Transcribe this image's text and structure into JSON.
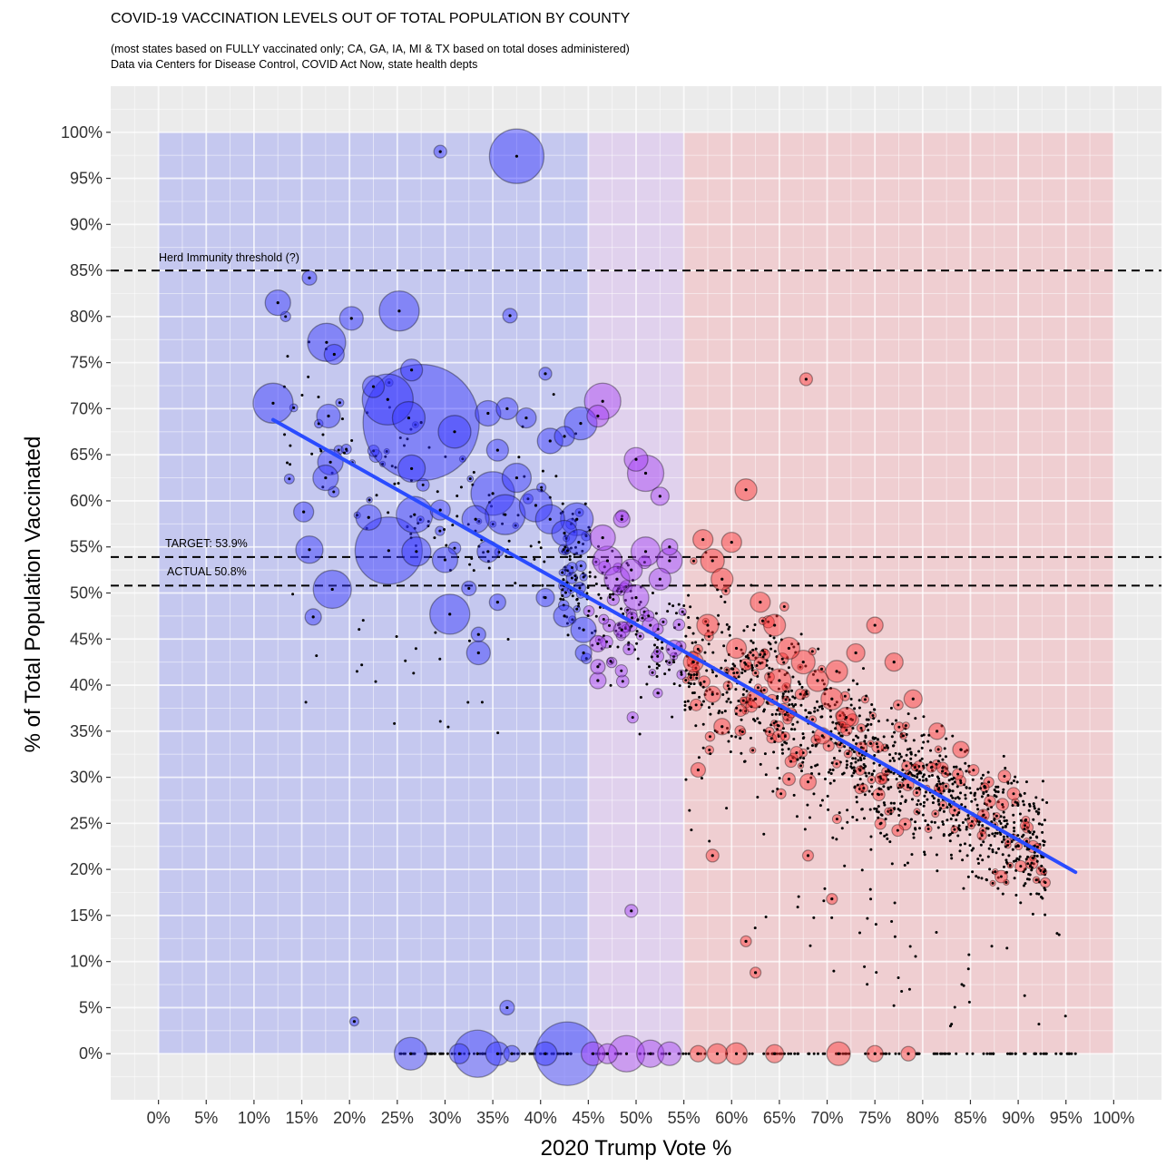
{
  "chart_data": {
    "type": "scatter",
    "title": "COVID-19 VACCINATION LEVELS OUT OF TOTAL POPULATION BY COUNTY",
    "subtitle_lines": [
      "(most states based on FULLY vaccinated only; CA, GA, IA, MI & TX based on total doses administered)",
      " Data via Centers for Disease Control, COVID Act Now, state health depts"
    ],
    "xlabel": "2020 Trump Vote %",
    "ylabel": "% of Total Population Vaccinated",
    "xlim": [
      -5,
      105
    ],
    "ylim": [
      -5,
      105
    ],
    "x_ticks": [
      "0%",
      "5%",
      "10%",
      "15%",
      "20%",
      "25%",
      "30%",
      "35%",
      "40%",
      "45%",
      "50%",
      "55%",
      "60%",
      "65%",
      "70%",
      "75%",
      "80%",
      "85%",
      "90%",
      "95%",
      "100%"
    ],
    "y_ticks": [
      "0%",
      "5%",
      "10%",
      "15%",
      "20%",
      "25%",
      "30%",
      "35%",
      "40%",
      "45%",
      "50%",
      "55%",
      "60%",
      "65%",
      "70%",
      "75%",
      "80%",
      "85%",
      "90%",
      "95%",
      "100%"
    ],
    "grid": true,
    "background_bands": [
      {
        "x_from": 0,
        "x_to": 45,
        "color": "#b8bcf0"
      },
      {
        "x_from": 45,
        "x_to": 55,
        "color": "#dcc8ee"
      },
      {
        "x_from": 55,
        "x_to": 100,
        "color": "#f0c4c8"
      }
    ],
    "reference_lines": [
      {
        "y": 85,
        "label": "Herd Immunity threshold (?)"
      },
      {
        "y": 53.9,
        "label": "TARGET: 53.9%"
      },
      {
        "y": 50.8,
        "label": "ACTUAL 50.8%"
      }
    ],
    "trend_line": {
      "x": [
        12,
        96
      ],
      "y": [
        68.8,
        19.7
      ],
      "color": "#2a4bff"
    },
    "point_colors": {
      "dem": "#3333ff",
      "swing": "#a43cf5",
      "gop": "#ff3333"
    },
    "points": [
      {
        "x": 37.5,
        "y": 97.4,
        "size": 30
      },
      {
        "x": 29.5,
        "y": 97.9,
        "size": 7
      },
      {
        "x": 12.5,
        "y": 81.5,
        "size": 14
      },
      {
        "x": 15.8,
        "y": 84.2,
        "size": 8
      },
      {
        "x": 20.2,
        "y": 79.8,
        "size": 13
      },
      {
        "x": 25.2,
        "y": 80.6,
        "size": 22
      },
      {
        "x": 36.8,
        "y": 80.1,
        "size": 8
      },
      {
        "x": 17.6,
        "y": 77.2,
        "size": 21
      },
      {
        "x": 18.4,
        "y": 75.9,
        "size": 11
      },
      {
        "x": 12,
        "y": 70.6,
        "size": 22
      },
      {
        "x": 26.5,
        "y": 74.2,
        "size": 12
      },
      {
        "x": 22.5,
        "y": 72.4,
        "size": 12
      },
      {
        "x": 24,
        "y": 71,
        "size": 28
      },
      {
        "x": 27.5,
        "y": 68.5,
        "size": 64
      },
      {
        "x": 26.2,
        "y": 69,
        "size": 18
      },
      {
        "x": 26.5,
        "y": 63.5,
        "size": 15
      },
      {
        "x": 31,
        "y": 67.5,
        "size": 18
      },
      {
        "x": 34.5,
        "y": 69.5,
        "size": 14
      },
      {
        "x": 35.5,
        "y": 65.5,
        "size": 12
      },
      {
        "x": 17.8,
        "y": 69.2,
        "size": 13
      },
      {
        "x": 18,
        "y": 64.2,
        "size": 14
      },
      {
        "x": 17.5,
        "y": 62.5,
        "size": 14
      },
      {
        "x": 22,
        "y": 58.2,
        "size": 14
      },
      {
        "x": 24.1,
        "y": 54.6,
        "size": 37
      },
      {
        "x": 15.2,
        "y": 58.8,
        "size": 11
      },
      {
        "x": 15.8,
        "y": 54.7,
        "size": 15
      },
      {
        "x": 18.2,
        "y": 50.4,
        "size": 21
      },
      {
        "x": 16.2,
        "y": 47.4,
        "size": 9
      },
      {
        "x": 26.8,
        "y": 58.5,
        "size": 20
      },
      {
        "x": 27,
        "y": 54.5,
        "size": 16
      },
      {
        "x": 29.5,
        "y": 59,
        "size": 11
      },
      {
        "x": 30,
        "y": 53.6,
        "size": 14
      },
      {
        "x": 30.5,
        "y": 47.7,
        "size": 22
      },
      {
        "x": 33.2,
        "y": 58,
        "size": 15
      },
      {
        "x": 34.5,
        "y": 54.5,
        "size": 12
      },
      {
        "x": 35,
        "y": 60.8,
        "size": 24
      },
      {
        "x": 36.3,
        "y": 58.5,
        "size": 22
      },
      {
        "x": 37.5,
        "y": 62.5,
        "size": 16
      },
      {
        "x": 39.5,
        "y": 59.5,
        "size": 18
      },
      {
        "x": 41,
        "y": 58,
        "size": 16
      },
      {
        "x": 42.5,
        "y": 56.5,
        "size": 14
      },
      {
        "x": 43.8,
        "y": 58,
        "size": 18
      },
      {
        "x": 44,
        "y": 55.5,
        "size": 14
      },
      {
        "x": 36.5,
        "y": 70,
        "size": 12
      },
      {
        "x": 38.5,
        "y": 69,
        "size": 11
      },
      {
        "x": 41,
        "y": 66.5,
        "size": 14
      },
      {
        "x": 42.5,
        "y": 67,
        "size": 11
      },
      {
        "x": 44.2,
        "y": 68.4,
        "size": 18
      },
      {
        "x": 46.5,
        "y": 70.8,
        "size": 20
      },
      {
        "x": 46,
        "y": 69.2,
        "size": 12
      },
      {
        "x": 40.5,
        "y": 73.8,
        "size": 7
      },
      {
        "x": 33.5,
        "y": 45.5,
        "size": 8
      },
      {
        "x": 33.5,
        "y": 43.5,
        "size": 13
      },
      {
        "x": 35.5,
        "y": 49,
        "size": 9
      },
      {
        "x": 32.5,
        "y": 50.5,
        "size": 8
      },
      {
        "x": 40.5,
        "y": 49.5,
        "size": 10
      },
      {
        "x": 42.5,
        "y": 47.5,
        "size": 12
      },
      {
        "x": 44.5,
        "y": 46,
        "size": 14
      },
      {
        "x": 44.5,
        "y": 43.5,
        "size": 9
      },
      {
        "x": 46.5,
        "y": 56,
        "size": 14
      },
      {
        "x": 47,
        "y": 53.5,
        "size": 16
      },
      {
        "x": 48,
        "y": 51.5,
        "size": 14
      },
      {
        "x": 49.5,
        "y": 52.5,
        "size": 12
      },
      {
        "x": 50,
        "y": 49.5,
        "size": 14
      },
      {
        "x": 51,
        "y": 54.5,
        "size": 16
      },
      {
        "x": 52.5,
        "y": 51.5,
        "size": 12
      },
      {
        "x": 53.5,
        "y": 53.5,
        "size": 14
      },
      {
        "x": 50,
        "y": 64.5,
        "size": 13
      },
      {
        "x": 51,
        "y": 63,
        "size": 20
      },
      {
        "x": 52.5,
        "y": 60.5,
        "size": 10
      },
      {
        "x": 48.5,
        "y": 58,
        "size": 9
      },
      {
        "x": 53.5,
        "y": 55,
        "size": 9
      },
      {
        "x": 46,
        "y": 44.5,
        "size": 9
      },
      {
        "x": 48.5,
        "y": 46,
        "size": 9
      },
      {
        "x": 51.5,
        "y": 46.5,
        "size": 9
      },
      {
        "x": 54,
        "y": 44,
        "size": 9
      },
      {
        "x": 46,
        "y": 42,
        "size": 8
      },
      {
        "x": 46,
        "y": 40.5,
        "size": 9
      },
      {
        "x": 49.5,
        "y": 15.5,
        "size": 7
      },
      {
        "x": 57,
        "y": 55.8,
        "size": 11
      },
      {
        "x": 58,
        "y": 53.5,
        "size": 13
      },
      {
        "x": 59,
        "y": 51.5,
        "size": 12
      },
      {
        "x": 60,
        "y": 55.5,
        "size": 11
      },
      {
        "x": 61.5,
        "y": 61.2,
        "size": 12
      },
      {
        "x": 63,
        "y": 49,
        "size": 11
      },
      {
        "x": 64.5,
        "y": 46.5,
        "size": 12
      },
      {
        "x": 66,
        "y": 44,
        "size": 12
      },
      {
        "x": 67.5,
        "y": 42.5,
        "size": 13
      },
      {
        "x": 69,
        "y": 40.5,
        "size": 12
      },
      {
        "x": 70.5,
        "y": 38.5,
        "size": 12
      },
      {
        "x": 72,
        "y": 36.5,
        "size": 11
      },
      {
        "x": 57.5,
        "y": 46.5,
        "size": 12
      },
      {
        "x": 56,
        "y": 42.5,
        "size": 11
      },
      {
        "x": 58,
        "y": 39,
        "size": 9
      },
      {
        "x": 59,
        "y": 35.5,
        "size": 9
      },
      {
        "x": 60.5,
        "y": 44,
        "size": 11
      },
      {
        "x": 62.5,
        "y": 38.5,
        "size": 10
      },
      {
        "x": 56.5,
        "y": 30.8,
        "size": 8
      },
      {
        "x": 58,
        "y": 21.5,
        "size": 7
      },
      {
        "x": 67.8,
        "y": 73.2,
        "size": 7
      },
      {
        "x": 65,
        "y": 40.5,
        "size": 13
      },
      {
        "x": 71,
        "y": 41.5,
        "size": 12
      },
      {
        "x": 73,
        "y": 43.5,
        "size": 10
      },
      {
        "x": 75,
        "y": 46.5,
        "size": 9
      },
      {
        "x": 77,
        "y": 42.5,
        "size": 10
      },
      {
        "x": 79,
        "y": 38.5,
        "size": 10
      },
      {
        "x": 81.5,
        "y": 35,
        "size": 9
      },
      {
        "x": 84,
        "y": 33,
        "size": 9
      },
      {
        "x": 69.5,
        "y": 34.5,
        "size": 9
      },
      {
        "x": 68,
        "y": 29.5,
        "size": 9
      },
      {
        "x": 66,
        "y": 29.8,
        "size": 7
      },
      {
        "x": 62.5,
        "y": 8.8,
        "size": 6
      },
      {
        "x": 61.5,
        "y": 12.2,
        "size": 6
      },
      {
        "x": 70.5,
        "y": 16.8,
        "size": 6
      },
      {
        "x": 68,
        "y": 21.5,
        "size": 6
      },
      {
        "x": 26.4,
        "y": 0,
        "size": 18
      },
      {
        "x": 31.5,
        "y": 0,
        "size": 11
      },
      {
        "x": 33.4,
        "y": 0,
        "size": 26
      },
      {
        "x": 35.5,
        "y": 0,
        "size": 13
      },
      {
        "x": 37,
        "y": 0,
        "size": 9
      },
      {
        "x": 40.5,
        "y": 0,
        "size": 13
      },
      {
        "x": 42.8,
        "y": 0,
        "size": 35
      },
      {
        "x": 45.5,
        "y": 0,
        "size": 13
      },
      {
        "x": 47,
        "y": 0,
        "size": 11
      },
      {
        "x": 49,
        "y": 0,
        "size": 20
      },
      {
        "x": 51.5,
        "y": 0,
        "size": 15
      },
      {
        "x": 53.5,
        "y": 0,
        "size": 13
      },
      {
        "x": 56.5,
        "y": 0,
        "size": 9
      },
      {
        "x": 58.5,
        "y": 0,
        "size": 11
      },
      {
        "x": 60.5,
        "y": 0,
        "size": 12
      },
      {
        "x": 64.5,
        "y": 0,
        "size": 10
      },
      {
        "x": 71.2,
        "y": 0,
        "size": 13
      },
      {
        "x": 75,
        "y": 0,
        "size": 9
      },
      {
        "x": 78.5,
        "y": 0,
        "size": 8
      },
      {
        "x": 36.5,
        "y": 5,
        "size": 8
      },
      {
        "x": 20.5,
        "y": 3.5,
        "size": 5
      }
    ],
    "dot_cloud_note_free": true
  }
}
